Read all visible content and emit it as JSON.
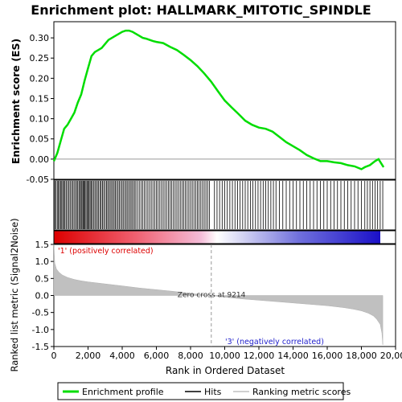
{
  "chart_data": {
    "type": "line",
    "title": "Enrichment plot: HALLMARK_MITOTIC_SPINDLE",
    "xlabel": "Rank in Ordered Dataset",
    "xlim": [
      0,
      20000
    ],
    "x_ticks": [
      0,
      2000,
      4000,
      6000,
      8000,
      10000,
      12000,
      14000,
      16000,
      18000,
      20000
    ],
    "x_tick_labels": [
      "0",
      "2,000",
      "4,000",
      "6,000",
      "8,000",
      "10,000",
      "12,000",
      "14,000",
      "16,000",
      "18,000",
      "20,000"
    ],
    "es_panel": {
      "ylabel": "Enrichment score (ES)",
      "ylim": [
        -0.05,
        0.34
      ],
      "y_ticks": [
        -0.05,
        0.0,
        0.05,
        0.1,
        0.15,
        0.2,
        0.25,
        0.3
      ],
      "y_tick_labels": [
        "-0.05",
        "0.00",
        "0.05",
        "0.10",
        "0.15",
        "0.20",
        "0.25",
        "0.30"
      ],
      "series": [
        {
          "name": "Enrichment profile",
          "color": "#00dd00",
          "x": [
            0,
            200,
            400,
            600,
            800,
            1000,
            1200,
            1400,
            1600,
            1800,
            2000,
            2200,
            2400,
            2600,
            2800,
            3000,
            3200,
            3400,
            3600,
            3800,
            4000,
            4200,
            4400,
            4600,
            4800,
            5000,
            5200,
            5400,
            5600,
            5800,
            6000,
            6400,
            6800,
            7200,
            7600,
            8000,
            8400,
            8800,
            9200,
            9600,
            10000,
            10400,
            10800,
            11200,
            11600,
            12000,
            12400,
            12800,
            13200,
            13600,
            14000,
            14400,
            14800,
            15200,
            15600,
            16000,
            16400,
            16800,
            17200,
            17600,
            18000,
            18200,
            18500,
            18800,
            19000,
            19300
          ],
          "y": [
            -0.005,
            0.015,
            0.045,
            0.075,
            0.085,
            0.1,
            0.115,
            0.14,
            0.16,
            0.195,
            0.225,
            0.255,
            0.265,
            0.27,
            0.275,
            0.285,
            0.295,
            0.3,
            0.305,
            0.31,
            0.315,
            0.318,
            0.318,
            0.315,
            0.31,
            0.305,
            0.3,
            0.298,
            0.295,
            0.292,
            0.29,
            0.287,
            0.278,
            0.27,
            0.258,
            0.245,
            0.23,
            0.212,
            0.192,
            0.168,
            0.145,
            0.128,
            0.112,
            0.095,
            0.085,
            0.078,
            0.075,
            0.068,
            0.055,
            0.042,
            0.032,
            0.022,
            0.01,
            0.002,
            -0.005,
            -0.005,
            -0.008,
            -0.01,
            -0.015,
            -0.018,
            -0.025,
            -0.02,
            -0.015,
            -0.005,
            0.0,
            -0.02
          ]
        }
      ]
    },
    "hits_panel": {
      "legend_label": "Hits",
      "hit_positions": [
        50,
        120,
        200,
        260,
        330,
        390,
        460,
        520,
        590,
        650,
        720,
        800,
        880,
        950,
        1030,
        1100,
        1180,
        1260,
        1330,
        1400,
        1470,
        1540,
        1600,
        1650,
        1710,
        1760,
        1820,
        1880,
        1940,
        2000,
        2060,
        2120,
        2180,
        2250,
        2320,
        2400,
        2470,
        2550,
        2620,
        2700,
        2770,
        2850,
        2920,
        3000,
        3080,
        3150,
        3230,
        3300,
        3380,
        3450,
        3530,
        3600,
        3680,
        3760,
        3840,
        3920,
        4000,
        4080,
        4160,
        4240,
        4320,
        4400,
        4480,
        4560,
        4640,
        4720,
        4800,
        4900,
        5000,
        5100,
        5200,
        5300,
        5400,
        5500,
        5600,
        5700,
        5800,
        5900,
        6000,
        6100,
        6200,
        6300,
        6400,
        6500,
        6600,
        6700,
        6800,
        6900,
        7000,
        7100,
        7200,
        7300,
        7400,
        7500,
        7600,
        7700,
        7800,
        7900,
        8000,
        8100,
        8200,
        8300,
        8400,
        8500,
        8600,
        8700,
        8800,
        8900,
        9000,
        9100,
        9400,
        9550,
        9700,
        9850,
        10000,
        10150,
        10300,
        10450,
        10600,
        10750,
        10900,
        11050,
        11200,
        11350,
        11500,
        11650,
        11800,
        11950,
        12100,
        12250,
        12400,
        12550,
        12700,
        12850,
        13000,
        13200,
        13400,
        13600,
        13800,
        14000,
        14200,
        14400,
        14600,
        14800,
        15000,
        15200,
        15400,
        15600,
        15800,
        16000,
        16200,
        16400,
        16600,
        16800,
        17000,
        17200,
        17400,
        17600,
        17800,
        18000,
        18200,
        18350,
        18500,
        18650,
        18800,
        18950,
        19100,
        19250
      ]
    },
    "metric_panel": {
      "ylabel": "Ranked list metric (Signal2Noise)",
      "ylim": [
        -1.5,
        1.5
      ],
      "y_ticks": [
        -1.5,
        -1.0,
        -0.5,
        0.0,
        0.5,
        1.0,
        1.5
      ],
      "y_tick_labels": [
        "-1.5",
        "-1.0",
        "-0.5",
        "0.0",
        "0.5",
        "1.0",
        "1.5"
      ],
      "zero_cross_label": "Zero cross at 9214",
      "zero_cross": 9214,
      "positive_label": "'1' (positively correlated)",
      "negative_label": "'3' (negatively correlated)",
      "positive_color": "#dd0000",
      "negative_color": "#2222cc",
      "fill_color": "#c0c0c0",
      "series": [
        {
          "name": "Ranking metric scores",
          "x": [
            0,
            50,
            150,
            300,
            500,
            800,
            1200,
            1600,
            2000,
            3000,
            4000,
            5000,
            6000,
            7000,
            8000,
            9214,
            10000,
            11000,
            12000,
            13000,
            14000,
            15000,
            16000,
            17000,
            17500,
            18000,
            18400,
            18700,
            18900,
            19100,
            19200,
            19250
          ],
          "y": [
            1.5,
            0.95,
            0.78,
            0.68,
            0.6,
            0.53,
            0.47,
            0.43,
            0.4,
            0.34,
            0.28,
            0.22,
            0.17,
            0.12,
            0.06,
            0.0,
            -0.05,
            -0.1,
            -0.14,
            -0.18,
            -0.22,
            -0.26,
            -0.3,
            -0.36,
            -0.4,
            -0.45,
            -0.52,
            -0.6,
            -0.7,
            -0.85,
            -1.1,
            -1.45
          ]
        }
      ]
    },
    "legend": {
      "position": "bottom",
      "items": [
        "Enrichment profile",
        "Hits",
        "Ranking metric scores"
      ]
    }
  }
}
